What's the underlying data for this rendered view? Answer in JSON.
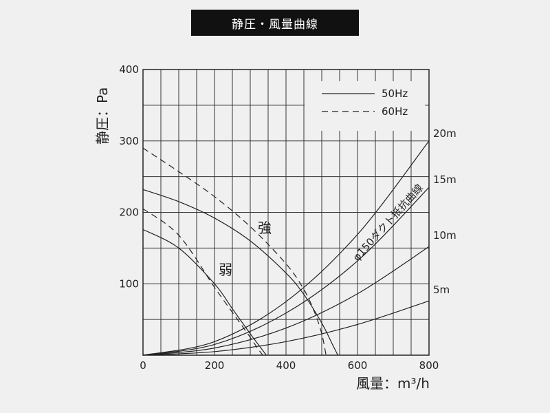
{
  "chart_data": {
    "type": "line",
    "title": "静圧・風量曲線",
    "xlabel": "風量：m³/h",
    "ylabel": "静圧：Pa",
    "xlim": [
      0,
      800
    ],
    "ylim": [
      0,
      400
    ],
    "x_ticks": [
      "0",
      "200",
      "400",
      "600",
      "800"
    ],
    "y_ticks": [
      "100",
      "200",
      "300",
      "400"
    ],
    "grid": true,
    "legend": {
      "placement": "top-right",
      "items": [
        {
          "label": "50Hz",
          "style": "solid"
        },
        {
          "label": "60Hz",
          "style": "dashed"
        }
      ]
    },
    "series": [
      {
        "group": "強",
        "freq": "50Hz",
        "style": "solid",
        "x": [
          0,
          100,
          200,
          300,
          400,
          450,
          500,
          530,
          545
        ],
        "y": [
          232,
          215,
          192,
          160,
          115,
          85,
          45,
          15,
          0
        ]
      },
      {
        "group": "強",
        "freq": "60Hz",
        "style": "dashed",
        "x": [
          0,
          100,
          200,
          300,
          400,
          450,
          480,
          500,
          512
        ],
        "y": [
          290,
          257,
          222,
          180,
          128,
          92,
          60,
          30,
          0
        ]
      },
      {
        "group": "弱",
        "freq": "50Hz",
        "style": "solid",
        "x": [
          0,
          100,
          200,
          250,
          300,
          330,
          345
        ],
        "y": [
          176,
          150,
          100,
          65,
          30,
          10,
          0
        ]
      },
      {
        "group": "弱",
        "freq": "60Hz",
        "style": "dashed",
        "x": [
          0,
          100,
          200,
          250,
          300,
          320,
          335
        ],
        "y": [
          205,
          168,
          95,
          60,
          25,
          10,
          0
        ]
      }
    ],
    "resistance_curves": [
      {
        "label": "20m",
        "x": [
          0,
          200,
          400,
          600,
          800
        ],
        "y": [
          0,
          19,
          75,
          169,
          300
        ]
      },
      {
        "label": "15m",
        "x": [
          0,
          200,
          400,
          600,
          800
        ],
        "y": [
          0,
          15,
          59,
          132,
          235
        ]
      },
      {
        "label": "10m",
        "x": [
          0,
          200,
          400,
          600,
          800
        ],
        "y": [
          0,
          10,
          38,
          86,
          152
        ]
      },
      {
        "label": "5m",
        "x": [
          0,
          200,
          400,
          600,
          800
        ],
        "y": [
          0,
          5,
          19,
          43,
          76
        ]
      }
    ],
    "annotations": {
      "strong": "強",
      "weak": "弱",
      "duct": "φ150ダクト抵抗曲線"
    }
  }
}
